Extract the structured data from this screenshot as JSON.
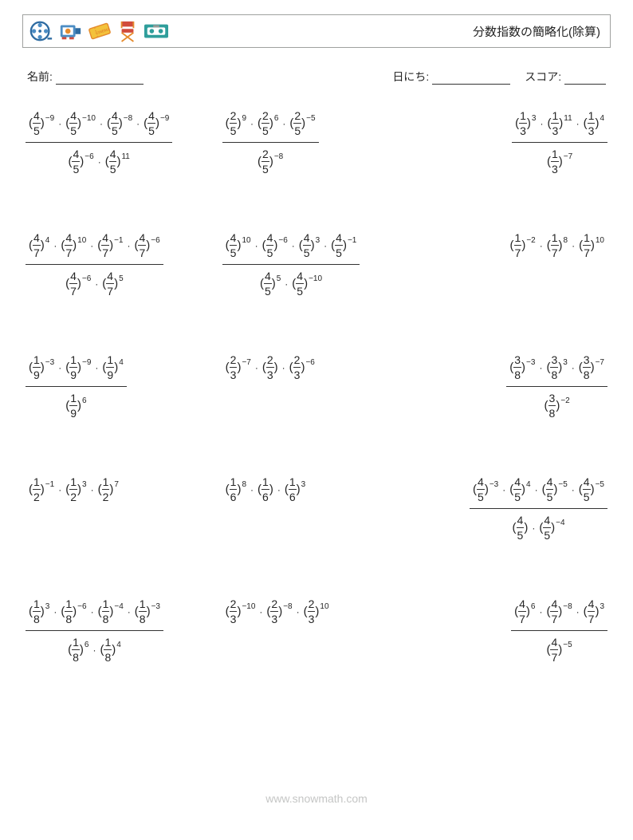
{
  "title": "分数指数の簡略化(除算)",
  "meta": {
    "name_label": "名前:",
    "date_label": "日にち:",
    "score_label": "スコア:"
  },
  "blank_widths": {
    "name": 110,
    "date": 98,
    "score": 52
  },
  "footer": "www.snowmath.com",
  "dot": "·",
  "colors": {
    "text": "#252525",
    "border": "#9fa19f",
    "footer": "#c5c6c5",
    "bg": "#ffffff",
    "icon_blue": "#4c8dc4",
    "icon_blue_dark": "#2e6ba1",
    "icon_yellow": "#f3c23b",
    "icon_orange": "#e58b2d",
    "icon_red": "#d14b3b",
    "icon_teal": "#2f9e9b",
    "icon_gray": "#9a9a97"
  },
  "icons": [
    "film-reel-icon",
    "camera-icon",
    "ticket-icon",
    "director-chair-icon",
    "vhs-icon"
  ],
  "problems": [
    [
      {
        "num": [
          [
            "4",
            "5",
            "-9"
          ],
          [
            "4",
            "5",
            "-10"
          ],
          [
            "4",
            "5",
            "-8"
          ],
          [
            "4",
            "5",
            "-9"
          ]
        ],
        "den": [
          [
            "4",
            "5",
            "-6"
          ],
          [
            "4",
            "5",
            "11"
          ]
        ]
      },
      {
        "num": [
          [
            "2",
            "5",
            "9"
          ],
          [
            "2",
            "5",
            "6"
          ],
          [
            "2",
            "5",
            "-5"
          ]
        ],
        "den": [
          [
            "2",
            "5",
            "-8"
          ]
        ]
      },
      {
        "num": [
          [
            "1",
            "3",
            "3"
          ],
          [
            "1",
            "3",
            "11"
          ],
          [
            "1",
            "3",
            "4"
          ]
        ],
        "den": [
          [
            "1",
            "3",
            "-7"
          ]
        ]
      }
    ],
    [
      {
        "num": [
          [
            "4",
            "7",
            "4"
          ],
          [
            "4",
            "7",
            "10"
          ],
          [
            "4",
            "7",
            "-1"
          ],
          [
            "4",
            "7",
            "-6"
          ]
        ],
        "den": [
          [
            "4",
            "7",
            "-6"
          ],
          [
            "4",
            "7",
            "5"
          ]
        ]
      },
      {
        "num": [
          [
            "4",
            "5",
            "10"
          ],
          [
            "4",
            "5",
            "-6"
          ],
          [
            "4",
            "5",
            "3"
          ],
          [
            "4",
            "5",
            "-1"
          ]
        ],
        "den": [
          [
            "4",
            "5",
            "5"
          ],
          [
            "4",
            "5",
            "-10"
          ]
        ]
      },
      {
        "num": [
          [
            "1",
            "7",
            "-2"
          ],
          [
            "1",
            "7",
            "8"
          ],
          [
            "1",
            "7",
            "10"
          ]
        ],
        "den": null
      }
    ],
    [
      {
        "num": [
          [
            "1",
            "9",
            "-3"
          ],
          [
            "1",
            "9",
            "-9"
          ],
          [
            "1",
            "9",
            "4"
          ]
        ],
        "den": [
          [
            "1",
            "9",
            "6"
          ]
        ]
      },
      {
        "num": [
          [
            "2",
            "3",
            "-7"
          ],
          [
            "2",
            "3",
            ""
          ],
          [
            "2",
            "3",
            "-6"
          ]
        ],
        "den": null
      },
      {
        "num": [
          [
            "3",
            "8",
            "-3"
          ],
          [
            "3",
            "8",
            "3"
          ],
          [
            "3",
            "8",
            "-7"
          ]
        ],
        "den": [
          [
            "3",
            "8",
            "-2"
          ]
        ]
      }
    ],
    [
      {
        "num": [
          [
            "1",
            "2",
            "-1"
          ],
          [
            "1",
            "2",
            "3"
          ],
          [
            "1",
            "2",
            "7"
          ]
        ],
        "den": null
      },
      {
        "num": [
          [
            "1",
            "6",
            "8"
          ],
          [
            "1",
            "6",
            ""
          ],
          [
            "1",
            "6",
            "3"
          ]
        ],
        "den": null
      },
      {
        "num": [
          [
            "4",
            "5",
            "-3"
          ],
          [
            "4",
            "5",
            "4"
          ],
          [
            "4",
            "5",
            "-5"
          ],
          [
            "4",
            "5",
            "-5"
          ]
        ],
        "den": [
          [
            "4",
            "5",
            ""
          ],
          [
            "4",
            "5",
            "-4"
          ]
        ]
      }
    ],
    [
      {
        "num": [
          [
            "1",
            "8",
            "3"
          ],
          [
            "1",
            "8",
            "-6"
          ],
          [
            "1",
            "8",
            "-4"
          ],
          [
            "1",
            "8",
            "-3"
          ]
        ],
        "den": [
          [
            "1",
            "8",
            "6"
          ],
          [
            "1",
            "8",
            "4"
          ]
        ]
      },
      {
        "num": [
          [
            "2",
            "3",
            "-10"
          ],
          [
            "2",
            "3",
            "-8"
          ],
          [
            "2",
            "3",
            "10"
          ]
        ],
        "den": null
      },
      {
        "num": [
          [
            "4",
            "7",
            "6"
          ],
          [
            "4",
            "7",
            "-8"
          ],
          [
            "4",
            "7",
            "3"
          ]
        ],
        "den": [
          [
            "4",
            "7",
            "-5"
          ]
        ]
      }
    ]
  ]
}
